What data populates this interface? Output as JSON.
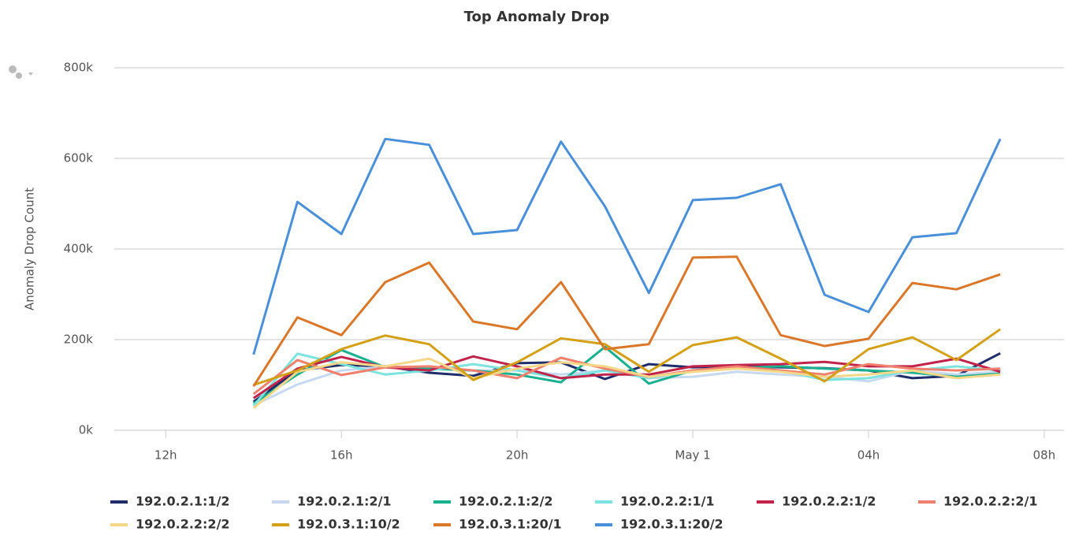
{
  "chart_data": {
    "type": "line",
    "title": "Top Anomaly Drop",
    "y_label": "Anomaly Drop Count",
    "x": [
      14,
      15,
      16,
      17,
      18,
      19,
      20,
      21,
      22,
      23,
      24,
      25,
      26,
      27,
      28,
      29,
      30,
      31
    ],
    "xlim": [
      10.83,
      32.27
    ],
    "xticks": [
      {
        "value": 12,
        "label": "12h"
      },
      {
        "value": 16,
        "label": "16h"
      },
      {
        "value": 20,
        "label": "20h"
      },
      {
        "value": 24,
        "label": "May 1"
      },
      {
        "value": 28,
        "label": "04h"
      },
      {
        "value": 32,
        "label": "08h"
      }
    ],
    "ylim": [
      0,
      800000
    ],
    "yticks": [
      {
        "value": 0,
        "label": "0k"
      },
      {
        "value": 200000,
        "label": "200k"
      },
      {
        "value": 400000,
        "label": "400k"
      },
      {
        "value": 600000,
        "label": "600k"
      },
      {
        "value": 800000,
        "label": "800k"
      }
    ],
    "grid": true,
    "legend": "bottom",
    "series": [
      {
        "name": "192.0.2.1:1/2",
        "color": "#1f2d6b",
        "values": [
          63000,
          132000,
          144000,
          141000,
          127000,
          120000,
          148000,
          150000,
          113000,
          146000,
          139000,
          141000,
          139000,
          137000,
          132000,
          115000,
          120000,
          170000
        ]
      },
      {
        "name": "192.0.2.1:2/1",
        "color": "#c6d9f0",
        "values": [
          55000,
          101000,
          132000,
          140000,
          140000,
          132000,
          132000,
          123000,
          132000,
          115000,
          118000,
          129000,
          123000,
          118000,
          108000,
          132000,
          123000,
          129000
        ]
      },
      {
        "name": "192.0.2.1:2/2",
        "color": "#1bb08f",
        "values": [
          59000,
          123000,
          177000,
          139000,
          136000,
          132000,
          123000,
          106000,
          184000,
          103000,
          132000,
          137000,
          141000,
          136000,
          132000,
          127000,
          118000,
          125000
        ]
      },
      {
        "name": "192.0.2.2:1/1",
        "color": "#7de3de",
        "values": [
          54000,
          169000,
          146000,
          123000,
          132000,
          146000,
          132000,
          115000,
          132000,
          115000,
          132000,
          136000,
          132000,
          111000,
          115000,
          132000,
          141000,
          132000
        ]
      },
      {
        "name": "192.0.2.2:1/2",
        "color": "#c0244a",
        "values": [
          71000,
          136000,
          162000,
          139000,
          132000,
          163000,
          141000,
          115000,
          123000,
          123000,
          141000,
          144000,
          146000,
          151000,
          141000,
          141000,
          158000,
          129000
        ]
      },
      {
        "name": "192.0.2.2:2/1",
        "color": "#f07f6e",
        "values": [
          80000,
          155000,
          122000,
          139000,
          141000,
          132000,
          115000,
          160000,
          136000,
          118000,
          132000,
          141000,
          132000,
          123000,
          146000,
          136000,
          132000,
          136000
        ]
      },
      {
        "name": "192.0.2.2:2/2",
        "color": "#f5d78a",
        "values": [
          49000,
          129000,
          150000,
          141000,
          158000,
          115000,
          136000,
          150000,
          141000,
          118000,
          129000,
          136000,
          129000,
          118000,
          123000,
          132000,
          115000,
          123000
        ]
      },
      {
        "name": "192.0.3.1:10/2",
        "color": "#d4a017",
        "values": [
          100000,
          132000,
          179000,
          209000,
          190000,
          111000,
          150000,
          203000,
          190000,
          129000,
          188000,
          205000,
          158000,
          108000,
          179000,
          205000,
          155000,
          223000
        ]
      },
      {
        "name": "192.0.3.1:20/1",
        "color": "#d9782a",
        "values": [
          97000,
          249000,
          210000,
          327000,
          370000,
          240000,
          223000,
          327000,
          179000,
          190000,
          381000,
          383000,
          210000,
          186000,
          202000,
          325000,
          311000,
          344000
        ]
      },
      {
        "name": "192.0.3.1:20/2",
        "color": "#4a90d9",
        "values": [
          167000,
          504000,
          433000,
          643000,
          630000,
          433000,
          442000,
          637000,
          494000,
          303000,
          508000,
          513000,
          543000,
          299000,
          261000,
          426000,
          435000,
          643000
        ]
      }
    ]
  }
}
